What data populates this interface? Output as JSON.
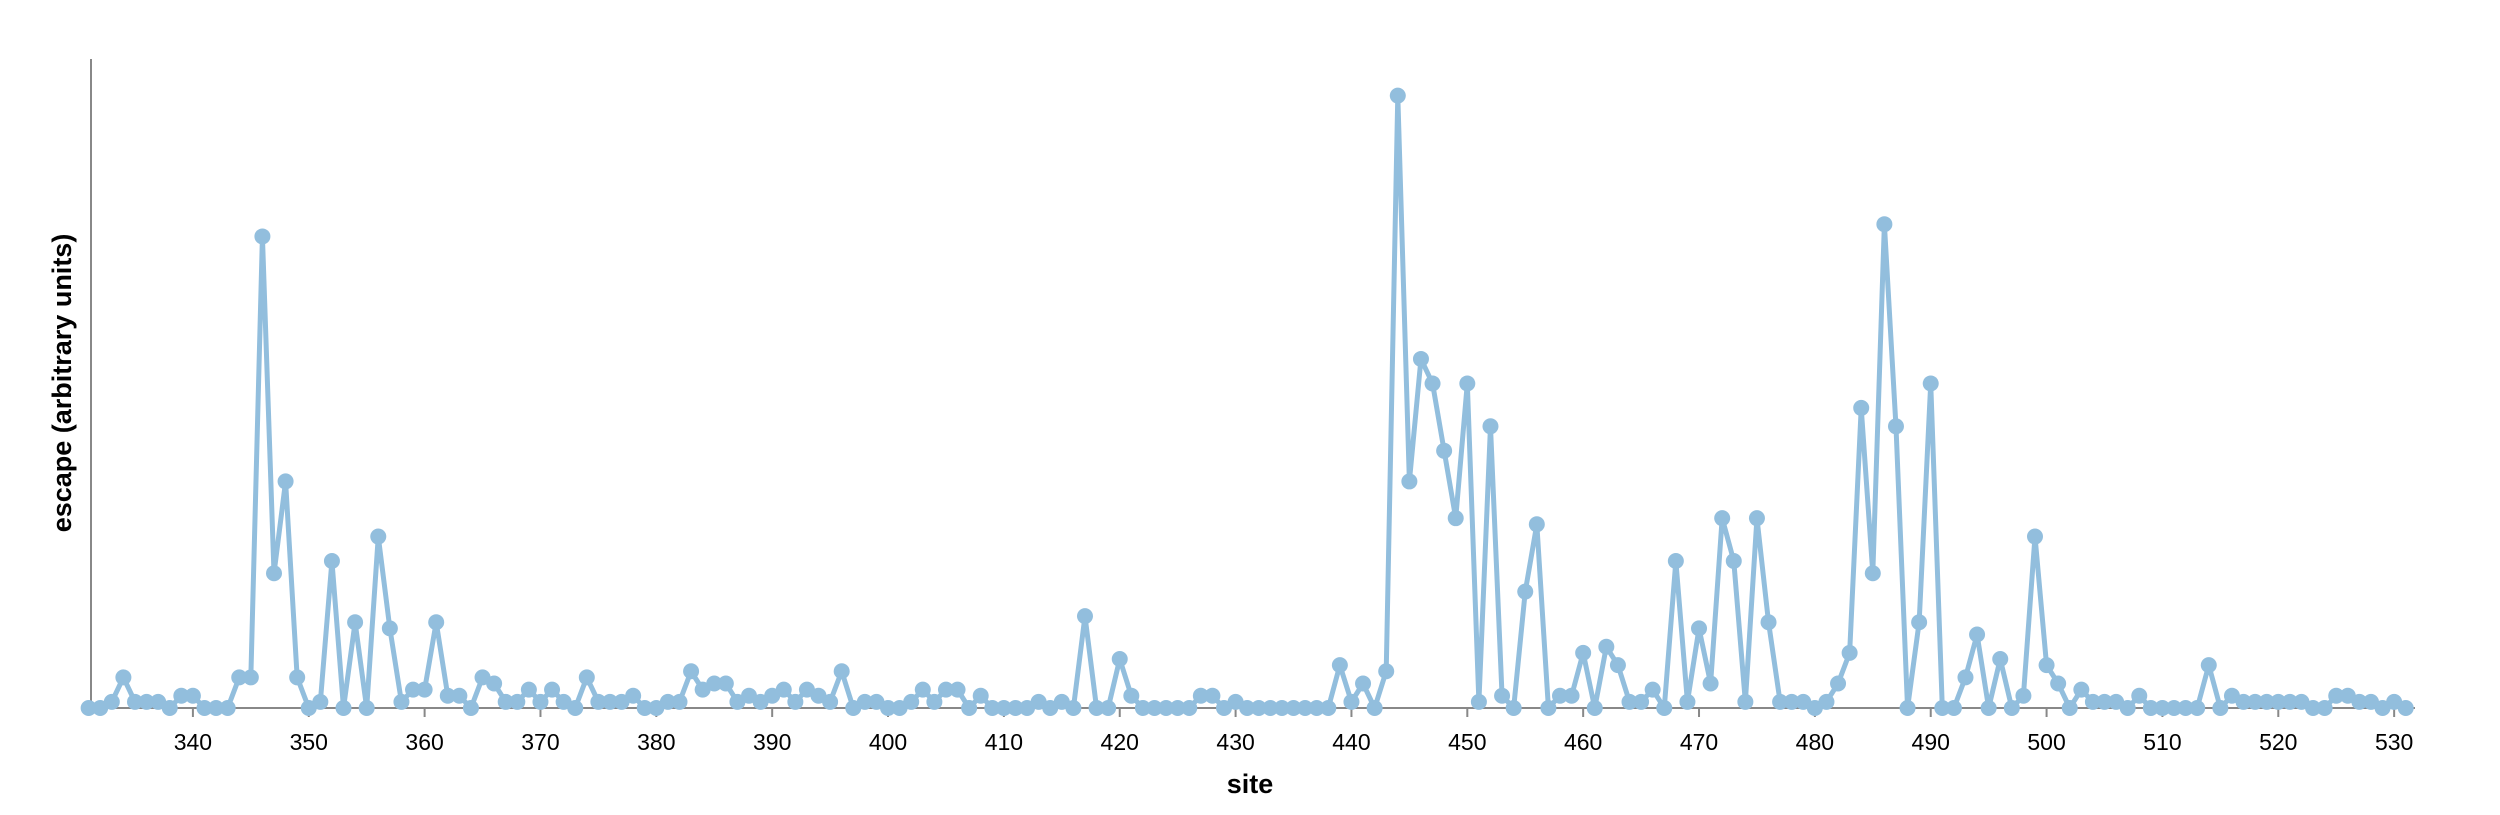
{
  "chart_data": {
    "type": "line",
    "x_label": "site",
    "y_label": "escape (arbitrary units)",
    "color": "#92bedd",
    "grid": false,
    "xlim": [
      330.6,
      531.8
    ],
    "ylim": [
      0,
      1.05
    ],
    "xticks": [
      340,
      350,
      360,
      370,
      380,
      390,
      400,
      410,
      420,
      430,
      440,
      450,
      460,
      470,
      480,
      490,
      500,
      510,
      520,
      530
    ],
    "x": [
      331,
      332,
      333,
      334,
      335,
      336,
      337,
      338,
      339,
      340,
      341,
      342,
      343,
      344,
      345,
      346,
      347,
      348,
      349,
      350,
      351,
      352,
      353,
      354,
      355,
      356,
      357,
      358,
      359,
      360,
      361,
      362,
      363,
      364,
      365,
      366,
      367,
      368,
      369,
      370,
      371,
      372,
      373,
      374,
      375,
      376,
      377,
      378,
      379,
      380,
      381,
      382,
      383,
      384,
      385,
      386,
      387,
      388,
      389,
      390,
      391,
      392,
      393,
      394,
      395,
      396,
      397,
      398,
      399,
      400,
      401,
      402,
      403,
      404,
      405,
      406,
      407,
      408,
      409,
      410,
      411,
      412,
      413,
      414,
      415,
      416,
      417,
      418,
      419,
      420,
      421,
      422,
      423,
      424,
      425,
      426,
      427,
      428,
      429,
      430,
      431,
      432,
      433,
      434,
      435,
      436,
      437,
      438,
      439,
      440,
      441,
      442,
      443,
      444,
      445,
      446,
      447,
      448,
      449,
      450,
      451,
      452,
      453,
      454,
      455,
      456,
      457,
      458,
      459,
      460,
      461,
      462,
      463,
      464,
      465,
      466,
      467,
      468,
      469,
      470,
      471,
      472,
      473,
      474,
      475,
      476,
      477,
      478,
      479,
      480,
      481,
      482,
      483,
      484,
      485,
      486,
      487,
      488,
      489,
      490,
      491,
      492,
      493,
      494,
      495,
      496,
      497,
      498,
      499,
      500,
      501,
      502,
      503,
      504,
      505,
      506,
      507,
      508,
      509,
      510,
      511,
      512,
      513,
      514,
      515,
      516,
      517,
      518,
      519,
      520,
      521,
      522,
      523,
      524,
      525,
      526,
      527,
      528,
      529,
      530,
      531
    ],
    "values": [
      0,
      0,
      0.01,
      0.05,
      0.01,
      0.01,
      0.01,
      0,
      0.02,
      0.02,
      0,
      0,
      0,
      0.05,
      0.05,
      0.77,
      0.22,
      0.37,
      0.05,
      0,
      0.01,
      0.24,
      0,
      0.14,
      0,
      0.28,
      0.13,
      0.01,
      0.03,
      0.03,
      0.14,
      0.02,
      0.02,
      0,
      0.05,
      0.04,
      0.01,
      0.01,
      0.03,
      0.01,
      0.03,
      0.01,
      0,
      0.05,
      0.01,
      0.01,
      0.01,
      0.02,
      0,
      0,
      0.01,
      0.01,
      0.06,
      0.03,
      0.04,
      0.04,
      0.01,
      0.02,
      0.01,
      0.02,
      0.03,
      0.01,
      0.03,
      0.02,
      0.01,
      0.06,
      0,
      0.01,
      0.01,
      0,
      0,
      0.01,
      0.03,
      0.01,
      0.03,
      0.03,
      0,
      0.02,
      0,
      0,
      0,
      0,
      0.01,
      0,
      0.01,
      0,
      0.15,
      0,
      0,
      0.08,
      0.02,
      0,
      0,
      0,
      0,
      0,
      0.02,
      0.02,
      0,
      0.01,
      0,
      0,
      0,
      0,
      0,
      0,
      0,
      0,
      0.07,
      0.01,
      0.04,
      0,
      0.06,
      1,
      0.37,
      0.57,
      0.53,
      0.42,
      0.31,
      0.53,
      0.01,
      0.46,
      0.02,
      0,
      0.19,
      0.3,
      0,
      0.02,
      0.02,
      0.09,
      0,
      0.1,
      0.07,
      0.01,
      0.01,
      0.03,
      0,
      0.24,
      0.01,
      0.13,
      0.04,
      0.31,
      0.24,
      0.01,
      0.31,
      0.14,
      0.01,
      0.01,
      0.01,
      0,
      0.01,
      0.04,
      0.09,
      0.49,
      0.22,
      0.79,
      0.46,
      0,
      0.14,
      0.53,
      0,
      0,
      0.05,
      0.12,
      0,
      0.08,
      0,
      0.02,
      0.28,
      0.07,
      0.04,
      0,
      0.03,
      0.01,
      0.01,
      0.01,
      0,
      0.02,
      0,
      0,
      0,
      0,
      0,
      0.07,
      0,
      0.02,
      0.01,
      0.01,
      0.01,
      0.01,
      0.01,
      0.01,
      0,
      0,
      0.02,
      0.02,
      0.01,
      0.01,
      0,
      0.01,
      0
    ]
  }
}
